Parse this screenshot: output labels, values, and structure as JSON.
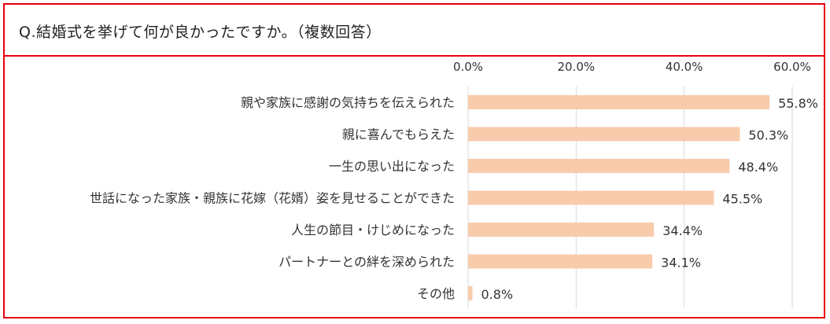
{
  "title": "Q.結婚式を挙げて何が良かったですか。（複数回答）",
  "colors": {
    "bar": "#f8cbad",
    "border": "#e60012",
    "grid": "#d9d9d9"
  },
  "chart_data": {
    "type": "bar",
    "orientation": "horizontal",
    "title": "Q.結婚式を挙げて何が良かったですか。（複数回答）",
    "categories": [
      "親や家族に感謝の気持ちを伝えられた",
      "親に喜んでもらえた",
      "一生の思い出になった",
      "世話になった家族・親族に花嫁（花婿）姿を見せることができた",
      "人生の節目・けじめになった",
      "パートナーとの絆を深められた",
      "その他"
    ],
    "values": [
      55.8,
      50.3,
      48.4,
      45.5,
      34.4,
      34.1,
      0.8
    ],
    "value_labels": [
      "55.8%",
      "50.3%",
      "48.4%",
      "45.5%",
      "34.4%",
      "34.1%",
      "0.8%"
    ],
    "xlim": [
      0,
      60
    ],
    "ticks": [
      0,
      20,
      40,
      60
    ],
    "tick_labels": [
      "0.0%",
      "20.0%",
      "40.0%",
      "60.0%"
    ],
    "axis_position": "top",
    "grid": true,
    "legend": "none"
  }
}
